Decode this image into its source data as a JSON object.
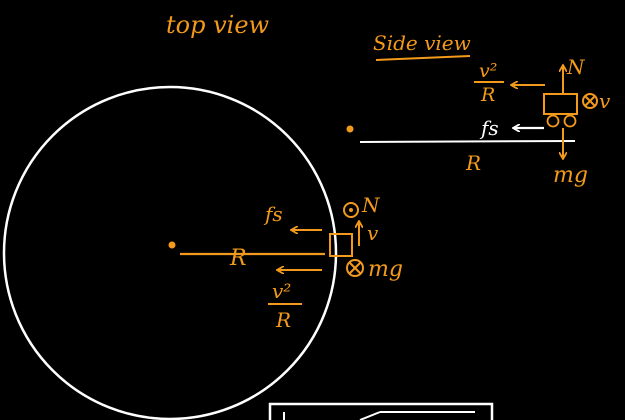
{
  "colors": {
    "background": "#000000",
    "ink": "#f39a1c",
    "chalk": "#ffffff"
  },
  "top_view": {
    "title": "top view",
    "radius_label": "R",
    "friction_label": "fs",
    "normal_label": "N",
    "velocity_label": "v",
    "weight_label": "mg",
    "centripetal_numerator": "v²",
    "centripetal_denominator": "R"
  },
  "side_view": {
    "title": "Side view",
    "centripetal_numerator": "v²",
    "centripetal_denominator": "R",
    "normal_label": "N",
    "velocity_label": "v",
    "friction_label": "fs",
    "radius_label": "R",
    "weight_label": "mg"
  },
  "icons": {
    "out_of_page": "dot-in-circle-icon",
    "into_page": "cross-in-circle-icon"
  }
}
